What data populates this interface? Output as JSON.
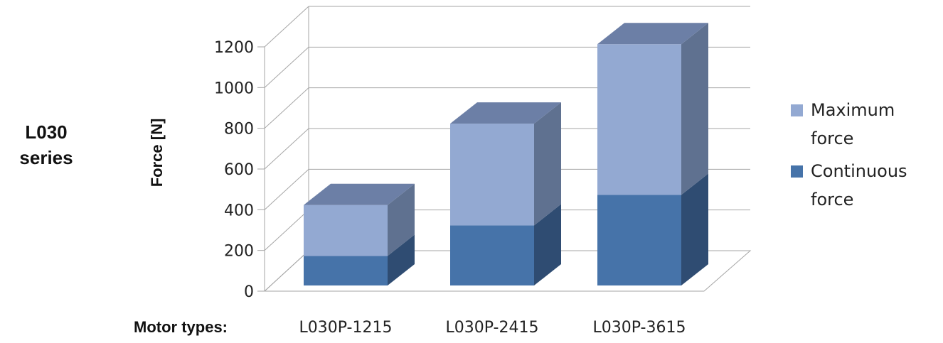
{
  "side_title": [
    "L030",
    "series"
  ],
  "chart_data": {
    "type": "bar",
    "stacked": true,
    "three_d": true,
    "categories": [
      "L030P-1215",
      "L030P-2415",
      "L030P-3615"
    ],
    "series": [
      {
        "name": "Continuous force",
        "values": [
          145,
          295,
          445
        ]
      },
      {
        "name": "Maximum force",
        "values": [
          250,
          500,
          740
        ]
      }
    ],
    "ylabel": "Force [N]",
    "xlabel": "Motor types:",
    "ylim": [
      0,
      1200
    ],
    "yticks": [
      "0",
      "200",
      "400",
      "600",
      "800",
      "1000",
      "1200"
    ],
    "grid": true,
    "legend_position": "right",
    "colors": {
      "continuous_front": "#4673a9",
      "continuous_side": "#2f4c72",
      "maximum_front": "#93a9d2",
      "maximum_side": "#5f7190",
      "top": "#6c7fa6",
      "gridline": "#a6a6a6"
    }
  },
  "legend": [
    {
      "line1": "Maximum",
      "line2": "force",
      "color": "#93a9d2"
    },
    {
      "line1": "Continuous",
      "line2": "force",
      "color": "#4673a9"
    }
  ]
}
